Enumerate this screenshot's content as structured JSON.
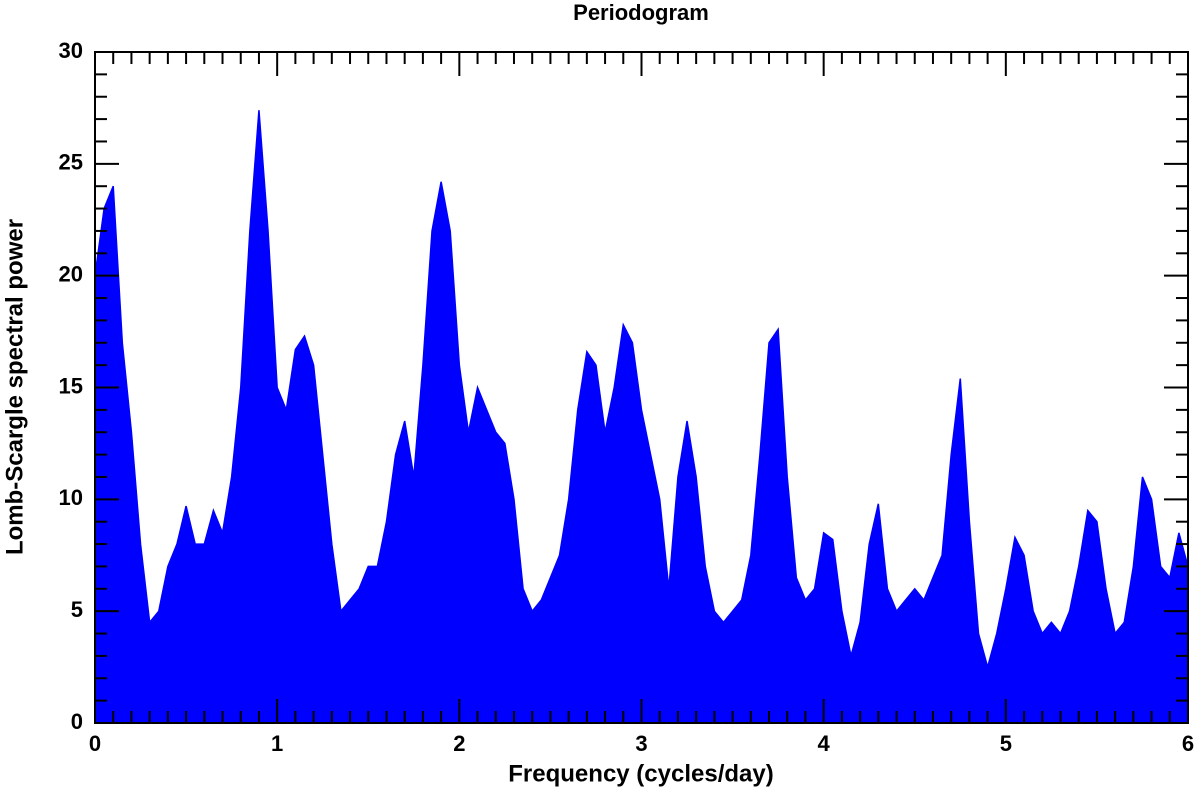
{
  "chart_data": {
    "type": "area",
    "title": "Periodogram",
    "x_label": "Frequency (cycles/day)",
    "y_label": "Lomb-Scargle spectral power",
    "color": "#0000ff",
    "xlim": [
      0,
      6
    ],
    "xticks": [
      0,
      1,
      2,
      3,
      4,
      5,
      6
    ],
    "ylim": [
      0,
      30
    ],
    "yticks": [
      0,
      5,
      10,
      15,
      20,
      25,
      30
    ],
    "x": [
      0,
      0.05,
      0.1,
      0.15,
      0.2,
      0.25,
      0.3,
      0.35,
      0.4,
      0.45,
      0.5,
      0.55,
      0.6,
      0.65,
      0.7,
      0.75,
      0.8,
      0.85,
      0.9,
      0.95,
      1,
      1.05,
      1.1,
      1.15,
      1.2,
      1.25,
      1.3,
      1.35,
      1.4,
      1.45,
      1.5,
      1.55,
      1.6,
      1.65,
      1.7,
      1.75,
      1.8,
      1.85,
      1.9,
      1.95,
      2,
      2.05,
      2.1,
      2.15,
      2.2,
      2.25,
      2.3,
      2.35,
      2.4,
      2.45,
      2.5,
      2.55,
      2.6,
      2.65,
      2.7,
      2.75,
      2.8,
      2.85,
      2.9,
      2.95,
      3,
      3.05,
      3.1,
      3.15,
      3.2,
      3.25,
      3.3,
      3.35,
      3.4,
      3.45,
      3.5,
      3.55,
      3.6,
      3.65,
      3.7,
      3.75,
      3.8,
      3.85,
      3.9,
      3.95,
      4,
      4.05,
      4.1,
      4.15,
      4.2,
      4.25,
      4.3,
      4.35,
      4.4,
      4.45,
      4.5,
      4.55,
      4.6,
      4.65,
      4.7,
      4.75,
      4.8,
      4.85,
      4.9,
      4.95,
      5,
      5.05,
      5.1,
      5.15,
      5.2,
      5.25,
      5.3,
      5.35,
      5.4,
      5.45,
      5.5,
      5.55,
      5.6,
      5.65,
      5.7,
      5.75,
      5.8,
      5.85,
      5.9,
      5.95,
      6
    ],
    "values": [
      20,
      23,
      24,
      17,
      13,
      8,
      4.5,
      5,
      7,
      8,
      9.7,
      8,
      8,
      9.5,
      8.5,
      11,
      15,
      22,
      27.4,
      22,
      15,
      14,
      16.7,
      17.3,
      16,
      12,
      8,
      5,
      5.5,
      6,
      7,
      7,
      9,
      12,
      13.5,
      11,
      16,
      22,
      24.2,
      22,
      16,
      13,
      15,
      14,
      13,
      12.5,
      10,
      6,
      5,
      5.5,
      6.5,
      7.5,
      10,
      14,
      16.6,
      16,
      13,
      15,
      17.8,
      17,
      14,
      12,
      10,
      6,
      11,
      13.5,
      11,
      7,
      5,
      4.5,
      5,
      5.5,
      7.5,
      12,
      17,
      17.6,
      11,
      6.5,
      5.5,
      6,
      8.5,
      8.2,
      5,
      3,
      4.5,
      8,
      9.8,
      6,
      5,
      5.5,
      6,
      5.5,
      6.5,
      7.5,
      12,
      15.4,
      9,
      4,
      2.5,
      4,
      6,
      8.3,
      7.5,
      5,
      4,
      4.5,
      4,
      5,
      7,
      9.5,
      9,
      6,
      4,
      4.5,
      7,
      11,
      10,
      7,
      6.5,
      8.5,
      7
    ]
  }
}
